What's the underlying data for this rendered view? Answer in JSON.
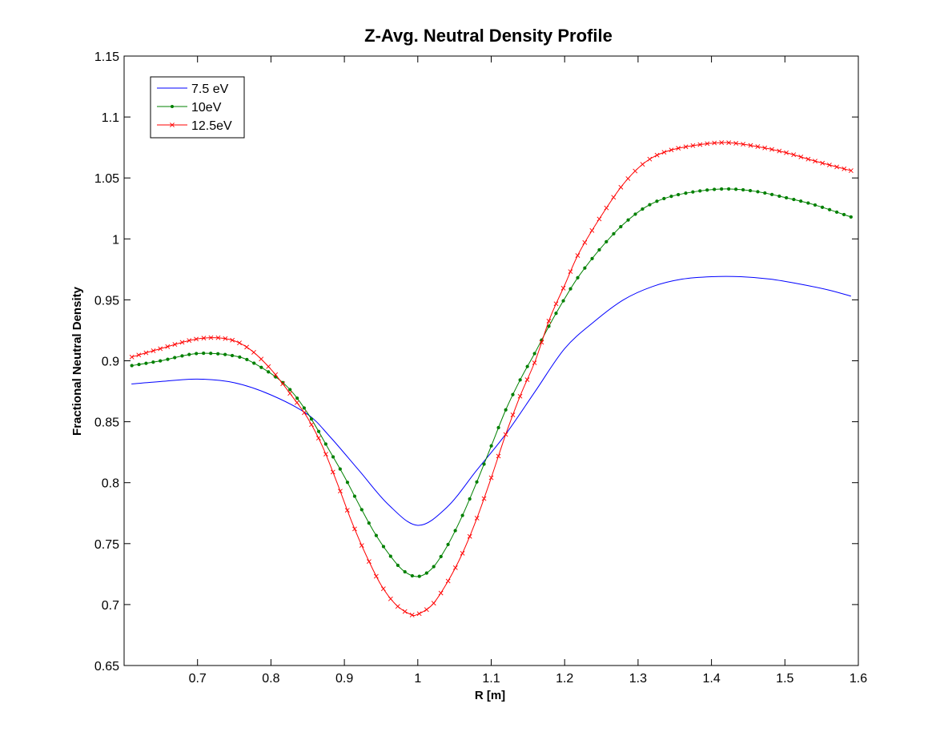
{
  "chart_data": {
    "type": "line",
    "title": "Z-Avg. Neutral Density Profile",
    "xlabel": "R [m]",
    "ylabel": "Fractional Neutral Density",
    "xlim": [
      0.6,
      1.6
    ],
    "ylim": [
      0.65,
      1.15
    ],
    "xticks": [
      "0.7",
      "0.8",
      "0.9",
      "1",
      "1.1",
      "1.2",
      "1.3",
      "1.4",
      "1.5",
      "1.6"
    ],
    "yticks": [
      "0.65",
      "0.7",
      "0.75",
      "0.8",
      "0.85",
      "0.9",
      "0.95",
      "1",
      "1.05",
      "1.1",
      "1.15"
    ],
    "grid": false,
    "legend_position": "top-left",
    "series": [
      {
        "name": "7.5 eV",
        "color": "#0000ff",
        "marker": "none",
        "x": [
          0.61,
          0.65,
          0.7,
          0.75,
          0.8,
          0.85,
          0.88,
          0.92,
          0.96,
          1.0,
          1.04,
          1.08,
          1.12,
          1.16,
          1.2,
          1.24,
          1.28,
          1.32,
          1.36,
          1.4,
          1.44,
          1.48,
          1.52,
          1.56,
          1.59
        ],
        "y": [
          0.881,
          0.883,
          0.885,
          0.882,
          0.872,
          0.856,
          0.838,
          0.81,
          0.782,
          0.765,
          0.78,
          0.81,
          0.84,
          0.875,
          0.91,
          0.932,
          0.95,
          0.961,
          0.967,
          0.969,
          0.969,
          0.967,
          0.963,
          0.958,
          0.953
        ]
      },
      {
        "name": "10eV",
        "color": "#008000",
        "marker": "dot",
        "x": [
          0.61,
          0.65,
          0.7,
          0.75,
          0.78,
          0.82,
          0.85,
          0.88,
          0.9,
          0.92,
          0.94,
          0.96,
          0.98,
          1.0,
          1.02,
          1.04,
          1.06,
          1.08,
          1.1,
          1.12,
          1.14,
          1.16,
          1.18,
          1.2,
          1.22,
          1.25,
          1.28,
          1.31,
          1.34,
          1.38,
          1.42,
          1.46,
          1.5,
          1.54,
          1.59
        ],
        "y": [
          0.896,
          0.9,
          0.906,
          0.904,
          0.897,
          0.88,
          0.857,
          0.826,
          0.805,
          0.782,
          0.76,
          0.742,
          0.728,
          0.723,
          0.73,
          0.748,
          0.772,
          0.8,
          0.83,
          0.86,
          0.885,
          0.907,
          0.93,
          0.951,
          0.97,
          0.993,
          1.012,
          1.026,
          1.034,
          1.039,
          1.041,
          1.039,
          1.034,
          1.028,
          1.018
        ]
      },
      {
        "name": "12.5eV",
        "color": "#ff0000",
        "marker": "x",
        "x": [
          0.61,
          0.65,
          0.7,
          0.74,
          0.77,
          0.8,
          0.83,
          0.85,
          0.87,
          0.89,
          0.91,
          0.93,
          0.95,
          0.97,
          0.99,
          1.0,
          1.02,
          1.04,
          1.06,
          1.08,
          1.1,
          1.12,
          1.14,
          1.16,
          1.18,
          1.2,
          1.22,
          1.25,
          1.28,
          1.31,
          1.34,
          1.38,
          1.42,
          1.46,
          1.5,
          1.54,
          1.59
        ],
        "y": [
          0.903,
          0.91,
          0.918,
          0.918,
          0.91,
          0.893,
          0.87,
          0.853,
          0.83,
          0.8,
          0.768,
          0.74,
          0.716,
          0.7,
          0.692,
          0.692,
          0.7,
          0.718,
          0.741,
          0.77,
          0.804,
          0.84,
          0.872,
          0.9,
          0.935,
          0.962,
          0.989,
          1.019,
          1.045,
          1.063,
          1.072,
          1.077,
          1.079,
          1.076,
          1.071,
          1.064,
          1.056
        ]
      }
    ]
  }
}
